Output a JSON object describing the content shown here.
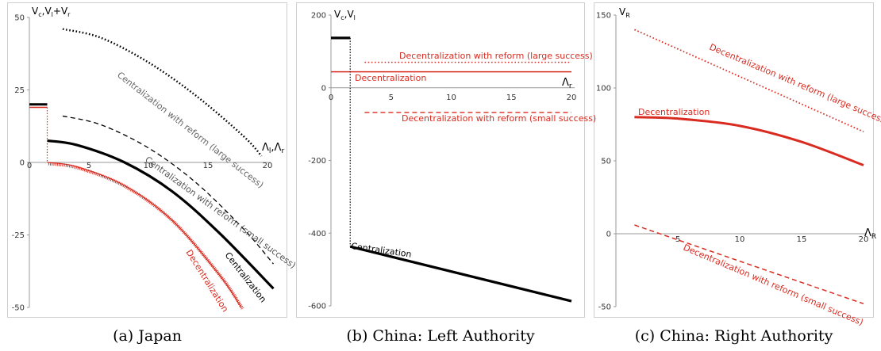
{
  "captions": [
    "(a) Japan",
    "(b) China: Left Authority",
    "(c) China: Right Authority"
  ],
  "chart_data": [
    {
      "type": "line",
      "ylabel": "V_c,V_l+V_r",
      "xlabel": "Λ_l,Λ_r",
      "xlim": [
        0,
        20
      ],
      "ylim": [
        -50,
        50
      ],
      "x_ticks": [
        0,
        5,
        10,
        15,
        20
      ],
      "y_ticks": [
        50,
        25,
        0,
        -25,
        -50
      ],
      "series": [
        {
          "name": "Centralization with reform (large success)",
          "color": "#000000",
          "style": "dotted",
          "width": 2.5,
          "x": [
            2.8,
            6,
            10,
            14,
            18,
            19.5
          ],
          "y": [
            46,
            43,
            34.5,
            23,
            9,
            2.2
          ]
        },
        {
          "name": "Centralization with reform (small success)",
          "color": "#000000",
          "style": "dashed",
          "width": 1.3,
          "x": [
            2.8,
            6,
            10,
            14,
            18,
            20.5
          ],
          "y": [
            16,
            13,
            5,
            -7,
            -23,
            -35
          ]
        },
        {
          "name": "Centralization",
          "color": "#000000",
          "style": "solid",
          "width": 3.2,
          "x": [
            1.5,
            4,
            8,
            12,
            16,
            20.5
          ],
          "y": [
            7.5,
            6,
            0,
            -10,
            -24.5,
            -43.5
          ]
        },
        {
          "name": "Decentralization",
          "color": "#d92b20",
          "style": "hatched",
          "width": 3,
          "x": [
            1.5,
            4,
            8,
            12,
            16,
            17.8
          ],
          "y": [
            0,
            -1.5,
            -8,
            -20,
            -39,
            -50
          ]
        }
      ],
      "marks": {
        "initial_level": 20,
        "initial_level_red": 19,
        "drop_x": 1.5
      }
    },
    {
      "type": "line",
      "ylabel": "V_c,V_l",
      "xlabel": "Λ_r",
      "xlim": [
        0,
        20
      ],
      "ylim": [
        -600,
        200
      ],
      "x_ticks": [
        0,
        5,
        10,
        15,
        20
      ],
      "y_ticks": [
        200,
        0,
        -200,
        -400,
        -600
      ],
      "series": [
        {
          "name": "Decentralization with reform (large success)",
          "color": "#d92b20",
          "style": "dotted",
          "width": 1.5,
          "x": [
            2.8,
            20
          ],
          "y": [
            70,
            70
          ]
        },
        {
          "name": "Decentralization",
          "color": "#d92b20",
          "style": "solid",
          "width": 1.5,
          "x": [
            0,
            20
          ],
          "y": [
            44,
            44
          ]
        },
        {
          "name": "Decentralization with reform (small success)",
          "color": "#d92b20",
          "style": "dashed",
          "width": 1.3,
          "x": [
            2.8,
            20
          ],
          "y": [
            -68,
            -68
          ]
        },
        {
          "name": "Centralization",
          "color": "#000000",
          "style": "solid",
          "width": 3.2,
          "x": [
            1.6,
            20
          ],
          "y": [
            -437,
            -587
          ]
        }
      ],
      "marks": {
        "initial_level": 137,
        "drop_x": 1.6
      }
    },
    {
      "type": "line",
      "ylabel": "V_R",
      "xlabel": "Λ_R",
      "xlim": [
        0,
        20
      ],
      "ylim": [
        -50,
        150
      ],
      "x_ticks": [
        5,
        10,
        15,
        20
      ],
      "y_ticks": [
        150,
        100,
        50,
        0,
        -50
      ],
      "series": [
        {
          "name": "Decentralization with reform (large success)",
          "color": "#d92b20",
          "style": "dotted",
          "width": 1.8,
          "x": [
            1.5,
            20
          ],
          "y": [
            140,
            70
          ]
        },
        {
          "name": "Decentralization",
          "color": "#d92b20",
          "style": "solid",
          "width": 3,
          "x": [
            1.5,
            5,
            10,
            15,
            20
          ],
          "y": [
            80,
            79,
            74,
            63,
            47
          ]
        },
        {
          "name": "Decentralization with reform (small success)",
          "color": "#d92b20",
          "style": "dashed",
          "width": 1.5,
          "x": [
            1.5,
            20
          ],
          "y": [
            6,
            -48
          ]
        }
      ]
    }
  ],
  "annotations": {
    "a": {
      "large": "Centralization with reform (large success)",
      "small": "Centralization with reform (small success)",
      "cent": "Centralization",
      "decent": "Decentralization"
    },
    "b": {
      "large": "Decentralization with reform (large success)",
      "decent": "Decentralization",
      "small": "Decentralization with reform (small success)",
      "cent": "Centralization"
    },
    "c": {
      "large": "Decentralization with reform (large success)",
      "decent": "Decentralization",
      "small": "Decentralization with reform (small success)"
    }
  },
  "colors": {
    "red": "#d92b20",
    "black": "#000000",
    "frame": "#cfcfcf",
    "axis": "#9a9a9a"
  }
}
